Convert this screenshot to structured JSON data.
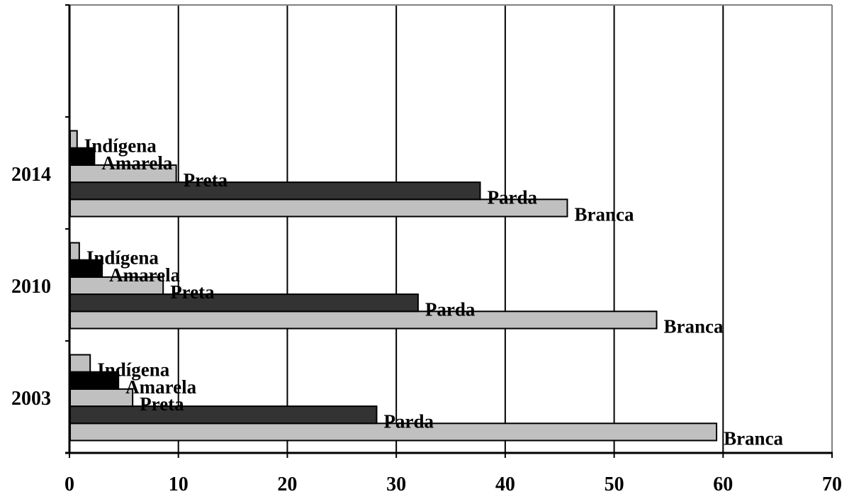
{
  "chart_data": {
    "type": "bar",
    "orientation": "horizontal",
    "categories": [
      "2003",
      "2010",
      "2014"
    ],
    "series": [
      {
        "name": "Branca",
        "values": [
          59.4,
          53.9,
          45.7
        ],
        "fill": "#c0c0c0"
      },
      {
        "name": "Parda",
        "values": [
          28.2,
          32.0,
          37.7
        ],
        "fill": "#333333"
      },
      {
        "name": "Preta",
        "values": [
          5.8,
          8.6,
          9.8
        ],
        "fill": "#c0c0c0"
      },
      {
        "name": "Amarela",
        "values": [
          4.5,
          3.0,
          2.3
        ],
        "fill": "#000000"
      },
      {
        "name": "Indígena",
        "values": [
          1.9,
          0.9,
          0.7
        ],
        "fill": "#c0c0c0"
      }
    ],
    "title": "",
    "xlabel": "",
    "ylabel": "",
    "xlim": [
      0,
      70
    ],
    "x_ticks": [
      "0",
      "10",
      "20",
      "30",
      "40",
      "50",
      "60",
      "70"
    ],
    "grid": "vertical",
    "legend": "none (series names labelled at bar ends)"
  }
}
